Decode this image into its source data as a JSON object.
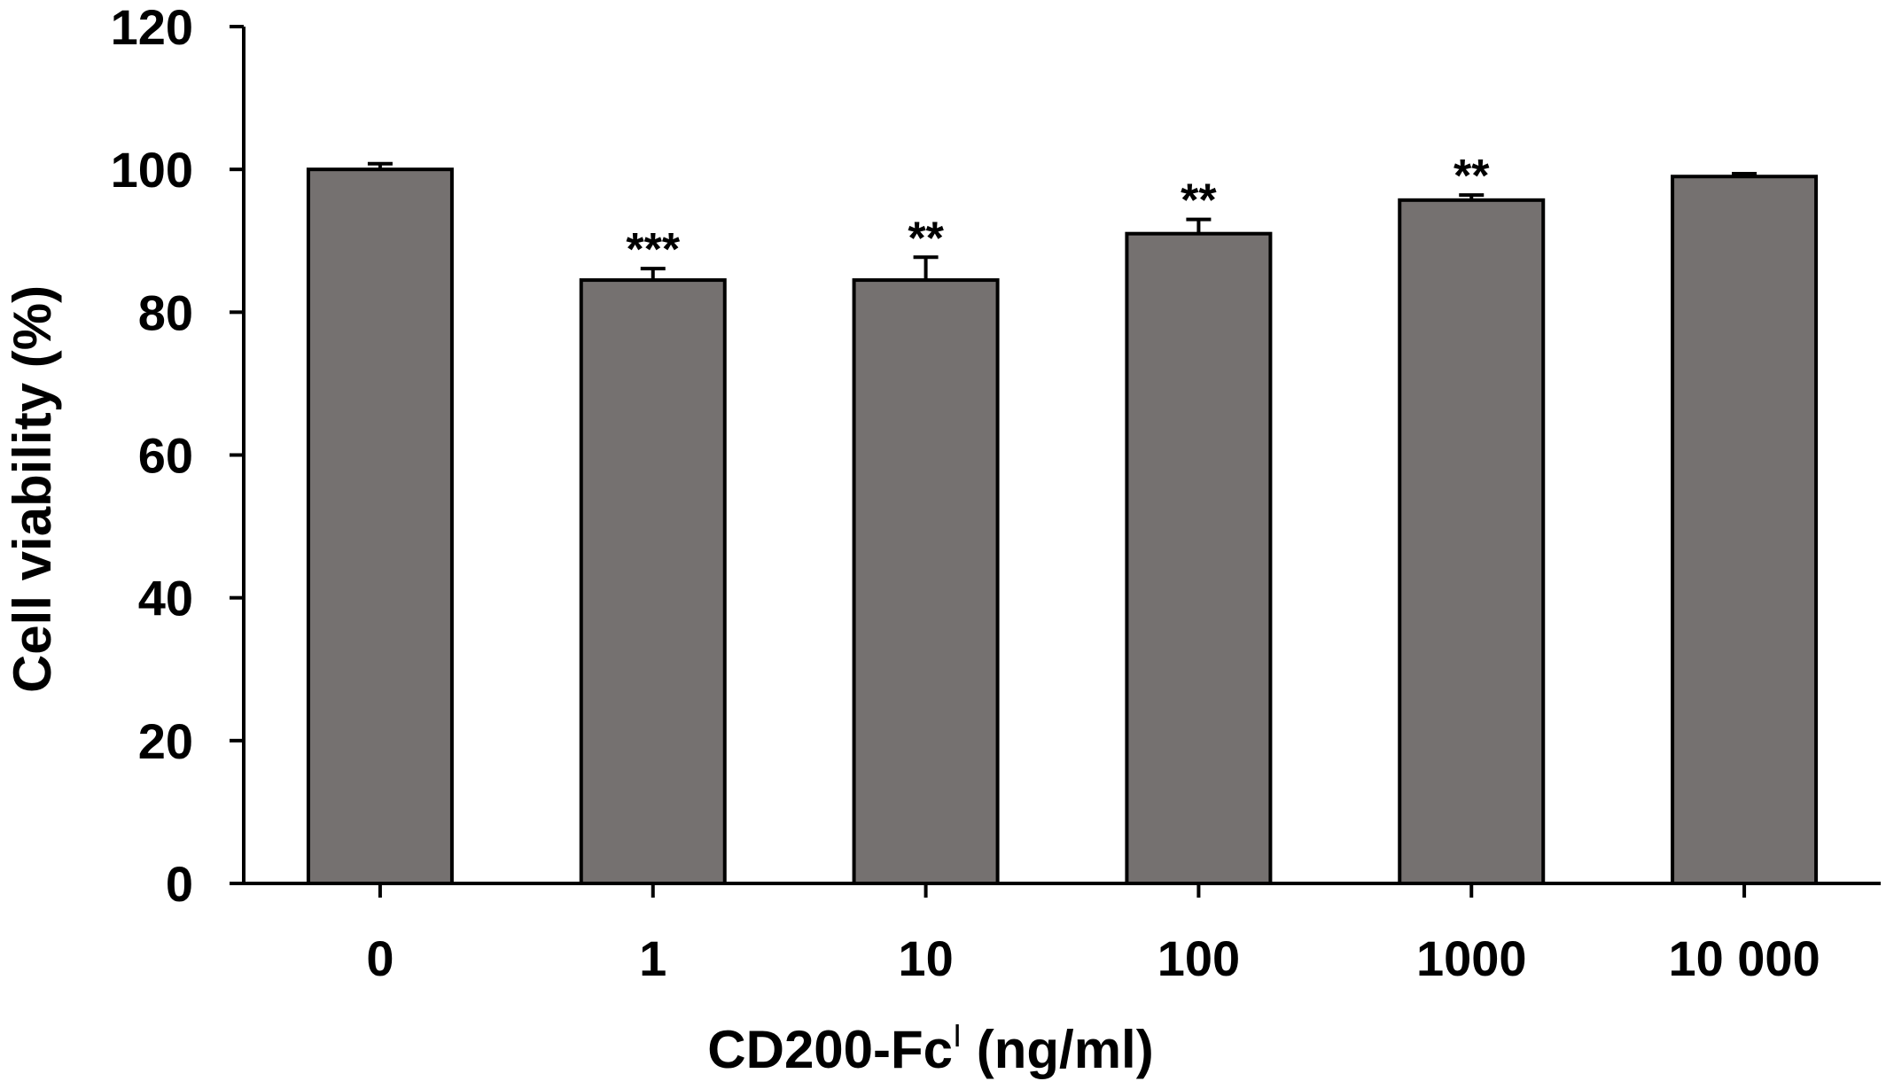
{
  "chart_data": {
    "type": "bar",
    "categories": [
      "0",
      "1",
      "10",
      "100",
      "1000",
      "10 000"
    ],
    "values": [
      100,
      84.5,
      84.5,
      91,
      95.7,
      99
    ],
    "errors": [
      0.8,
      1.6,
      3.2,
      2.0,
      0.7,
      0.4
    ],
    "significance": [
      "",
      "***",
      "**",
      "**",
      "**",
      ""
    ],
    "xlabel": "CD200-Fc",
    "xlabel_sup": "I",
    "xlabel_unit": " (ng/ml)",
    "ylabel": "Cell viability (%)",
    "ylim": [
      0,
      120
    ],
    "yticks": [
      0,
      20,
      40,
      60,
      80,
      100,
      120
    ],
    "grid": false,
    "colors": {
      "bar": "#757170",
      "outline": "#000000"
    }
  }
}
